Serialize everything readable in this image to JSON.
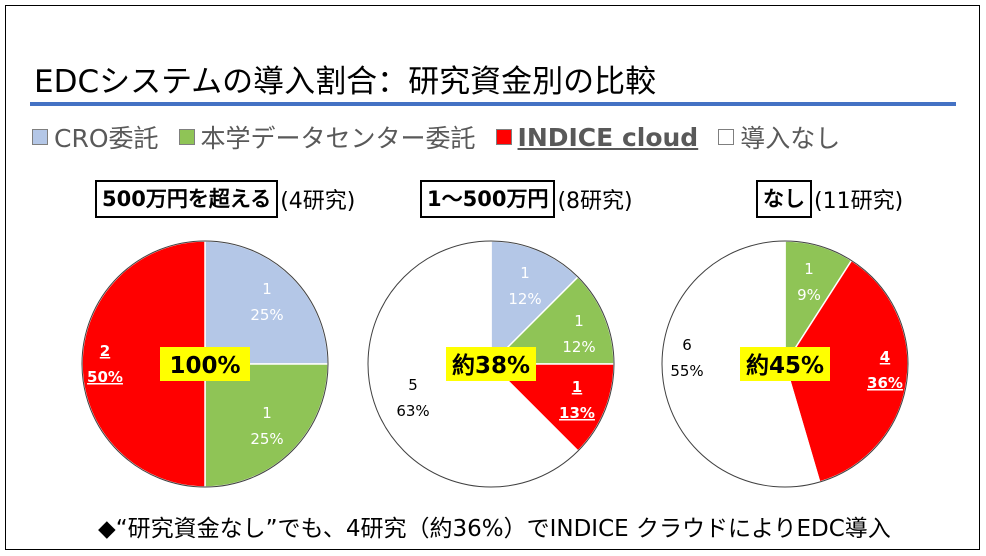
{
  "title": "EDCシステムの導入割合：研究資金別の比較",
  "legend": [
    {
      "label": "CRO委託",
      "color": "#b4c7e7"
    },
    {
      "label": "本学データセンター委託",
      "color": "#8fc456"
    },
    {
      "label": "INDICE cloud",
      "color": "#ff0000"
    },
    {
      "label": "導入なし",
      "color": "#ffffff"
    }
  ],
  "groups": [
    {
      "label": "500万円を超える",
      "count": "(4研究)"
    },
    {
      "label": "1～500万円",
      "count": "(8研究)"
    },
    {
      "label": "なし",
      "count": "(11研究)"
    }
  ],
  "footer": "◆“研究資金なし”でも、4研究（約36%）でINDICE クラウドによりEDC導入",
  "chart_data": [
    {
      "type": "pie",
      "title": "500万円を超える (4研究)",
      "center_label": "100%",
      "slices": [
        {
          "category": "CRO委託",
          "value": 1,
          "percent": "25%",
          "color": "#b4c7e7"
        },
        {
          "category": "本学データセンター委託",
          "value": 1,
          "percent": "25%",
          "color": "#8fc456"
        },
        {
          "category": "INDICE cloud",
          "value": 2,
          "percent": "50%",
          "color": "#ff0000"
        }
      ]
    },
    {
      "type": "pie",
      "title": "1～500万円 (8研究)",
      "center_label": "約38%",
      "slices": [
        {
          "category": "CRO委託",
          "value": 1,
          "percent": "12%",
          "color": "#b4c7e7"
        },
        {
          "category": "本学データセンター委託",
          "value": 1,
          "percent": "12%",
          "color": "#8fc456"
        },
        {
          "category": "INDICE cloud",
          "value": 1,
          "percent": "13%",
          "color": "#ff0000"
        },
        {
          "category": "導入なし",
          "value": 5,
          "percent": "63%",
          "color": "#ffffff"
        }
      ]
    },
    {
      "type": "pie",
      "title": "なし (11研究)",
      "center_label": "約45%",
      "slices": [
        {
          "category": "本学データセンター委託",
          "value": 1,
          "percent": "9%",
          "color": "#8fc456"
        },
        {
          "category": "INDICE cloud",
          "value": 4,
          "percent": "36%",
          "color": "#ff0000"
        },
        {
          "category": "導入なし",
          "value": 6,
          "percent": "55%",
          "color": "#ffffff"
        }
      ]
    }
  ]
}
